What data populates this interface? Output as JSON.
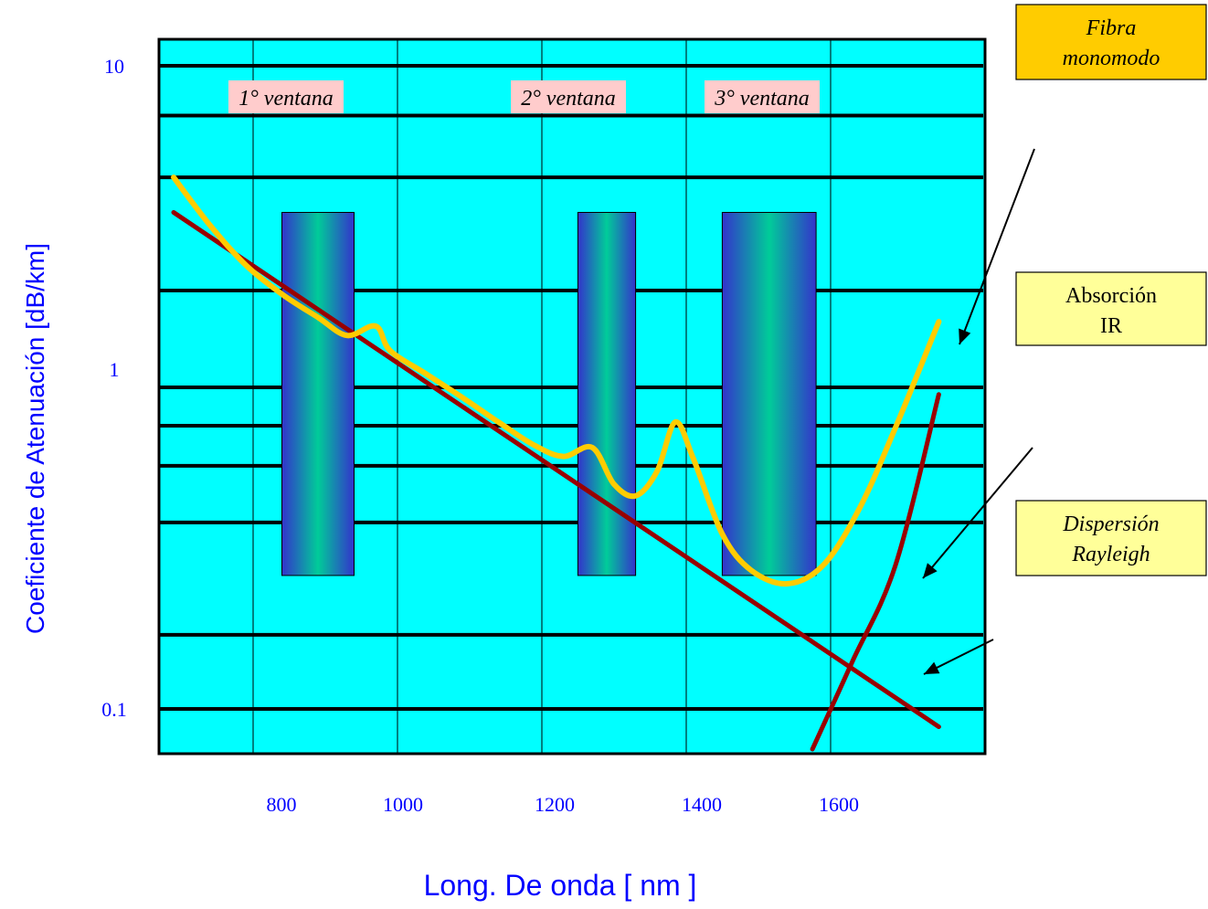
{
  "chart_data": {
    "type": "line",
    "xlabel": "Long. De onda [ nm ]",
    "ylabel": "Coeficiente de Atenuación [dB/km]",
    "xlim": [
      700,
      1800
    ],
    "ylim": [
      0.1,
      10
    ],
    "yscale": "log",
    "grid": true,
    "x_ticks": [
      {
        "value": 800,
        "label": "800"
      },
      {
        "value": 1000,
        "label": "1000"
      },
      {
        "value": 1200,
        "label": "1200"
      },
      {
        "value": 1400,
        "label": "1400"
      },
      {
        "value": 1600,
        "label": "1600"
      }
    ],
    "y_ticks": [
      {
        "value": 10,
        "label": "10"
      },
      {
        "value": 1,
        "label": "1"
      },
      {
        "value": 0.1,
        "label": "0.1"
      }
    ],
    "windows": [
      {
        "label": "1° ventana",
        "x0": 850,
        "x1": 950
      },
      {
        "label": "2° ventana",
        "x0": 1260,
        "x1": 1340
      },
      {
        "label": "3° ventana",
        "x0": 1460,
        "x1": 1590
      }
    ],
    "series": [
      {
        "name": "Fibra monomodo",
        "color": "#ffcc00",
        "points": [
          [
            700,
            4.5
          ],
          [
            750,
            3.2
          ],
          [
            800,
            2.4
          ],
          [
            850,
            1.95
          ],
          [
            900,
            1.65
          ],
          [
            940,
            1.45
          ],
          [
            980,
            1.55
          ],
          [
            1000,
            1.3
          ],
          [
            1050,
            1.1
          ],
          [
            1100,
            0.93
          ],
          [
            1150,
            0.78
          ],
          [
            1200,
            0.66
          ],
          [
            1240,
            0.61
          ],
          [
            1280,
            0.65
          ],
          [
            1310,
            0.5
          ],
          [
            1340,
            0.46
          ],
          [
            1370,
            0.55
          ],
          [
            1395,
            0.78
          ],
          [
            1420,
            0.6
          ],
          [
            1460,
            0.35
          ],
          [
            1500,
            0.27
          ],
          [
            1550,
            0.245
          ],
          [
            1600,
            0.28
          ],
          [
            1650,
            0.42
          ],
          [
            1700,
            0.75
          ],
          [
            1760,
            1.6
          ]
        ]
      },
      {
        "name": "Dispersión Rayleigh",
        "color": "#990000",
        "points": [
          [
            700,
            3.5
          ],
          [
            1760,
            0.088
          ]
        ]
      },
      {
        "name": "Absorción IR",
        "color": "#990000",
        "points": [
          [
            1585,
            0.075
          ],
          [
            1640,
            0.14
          ],
          [
            1700,
            0.28
          ],
          [
            1760,
            0.95
          ]
        ]
      }
    ],
    "annotations": [
      {
        "text": "Fibra monomodo",
        "line1": "Fibra",
        "line2": "monomodo",
        "fill": "#ffcc00",
        "italic": true
      },
      {
        "text": "Absorción IR",
        "line1": "Absorción",
        "line2": "IR",
        "fill": "#ffff99",
        "italic": false
      },
      {
        "text": "Dispersión Rayleigh",
        "line1": "Dispersión",
        "line2": "Rayleigh",
        "fill": "#ffff99",
        "italic": true
      }
    ],
    "colors": {
      "plot_background": "#00ffff",
      "axis_text": "#0000ff",
      "window_label_bg": "#ffcccc",
      "window_band_edge": "#3333cc",
      "window_band_center": "#00cc99"
    }
  }
}
